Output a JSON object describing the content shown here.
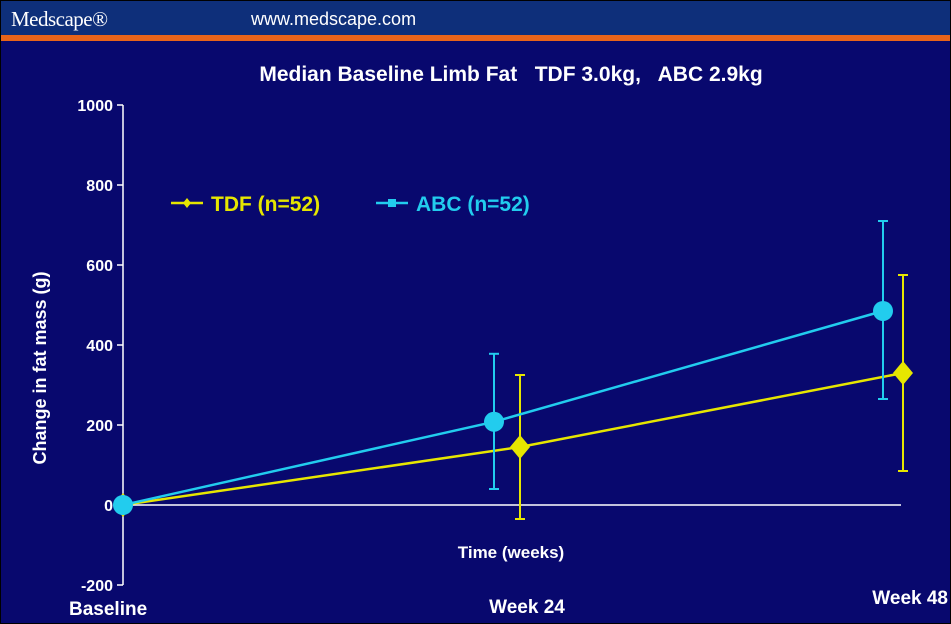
{
  "banner": {
    "brand": "Medscape®",
    "url": "www.medscape.com"
  },
  "colors": {
    "background": "#08086e",
    "tdf": "#e6e600",
    "abc": "#22ccee",
    "axis": "#ffffff",
    "text": "#ffffff"
  },
  "chart_data": {
    "type": "line",
    "title": "Median Baseline Limb Fat   TDF 3.0kg,   ABC 2.9kg",
    "xlabel": "Time (weeks)",
    "ylabel": "Change in fat mass (g)",
    "ylim": [
      -200,
      1000
    ],
    "yticks": [
      -200,
      0,
      200,
      400,
      600,
      800,
      1000
    ],
    "categories": [
      "Baseline",
      "Week 24",
      "Week 48"
    ],
    "legend_position": "top-left",
    "grid": false,
    "series": [
      {
        "name": "TDF (n=52)",
        "color": "#e6e600",
        "marker": "diamond",
        "values": [
          0,
          145,
          330
        ],
        "error_low": [
          0,
          -35,
          85
        ],
        "error_high": [
          0,
          325,
          575
        ]
      },
      {
        "name": "ABC (n=52)",
        "color": "#22ccee",
        "marker": "circle",
        "values": [
          0,
          208,
          485
        ],
        "error_low": [
          0,
          40,
          265
        ],
        "error_high": [
          0,
          378,
          710
        ]
      }
    ]
  }
}
